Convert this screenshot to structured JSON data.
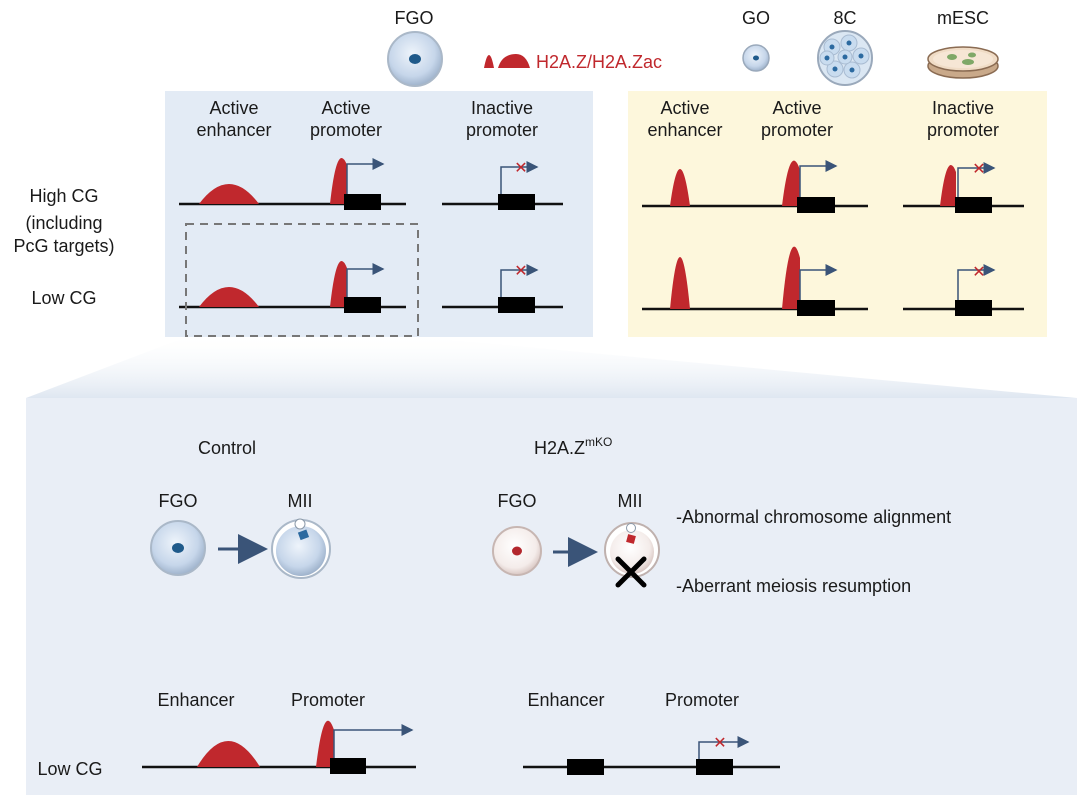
{
  "top": {
    "fgo_label": "FGO",
    "legend_label": "H2A.Z/H2A.Zac",
    "go_label": "GO",
    "eightc_label": "8C",
    "mesc_label": "mESC",
    "row_high_cg": [
      "High CG",
      "(including",
      "PcG targets)"
    ],
    "row_low_cg": "Low CG",
    "left_panel": {
      "active_enhancer": [
        "Active",
        "enhancer"
      ],
      "active_promoter": [
        "Active",
        "promoter"
      ],
      "inactive_promoter": [
        "Inactive",
        "promoter"
      ]
    },
    "right_panel": {
      "active_enhancer": [
        "Active",
        "enhancer"
      ],
      "active_promoter": [
        "Active",
        "promoter"
      ],
      "inactive_promoter": [
        "Inactive",
        "promoter"
      ]
    }
  },
  "bottom": {
    "control_label": "Control",
    "ko_label_base": "H2A.Z",
    "ko_label_sup": "mKO",
    "fgo_label": "FGO",
    "mii_label": "MII",
    "ko_fgo_label": "FGO",
    "ko_mii_label": "MII",
    "phenotype_1": "-Abnormal chromosome alignment",
    "phenotype_2": "-Aberrant meiosis resumption",
    "enhancer_label": "Enhancer",
    "promoter_label": "Promoter",
    "ko_enhancer_label": "Enhancer",
    "ko_promoter_label": "Promoter",
    "row_low_cg": "Low CG"
  },
  "colors": {
    "peak_red": "#c0282d",
    "left_panel_bg": "#e3ebf5",
    "right_panel_bg": "#fdf7dc",
    "bottom_panel_bg": "#e9eef6",
    "arrow_blue": "#3a5478"
  }
}
